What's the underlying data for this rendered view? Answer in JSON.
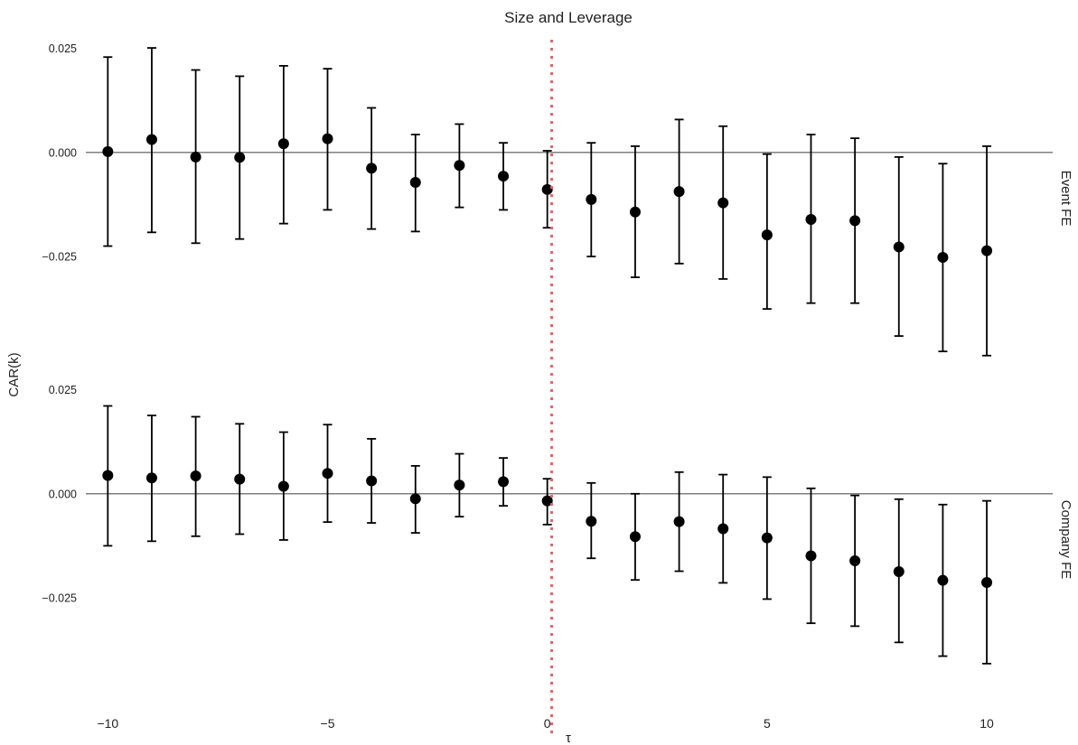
{
  "chart_data": {
    "type": "scatter",
    "title": "Size and Leverage",
    "xlabel": "τ",
    "ylabel": "CAR(k)",
    "xlim": [
      -10.5,
      11.5
    ],
    "x_ticks": [
      "−10",
      "−5",
      "0",
      "5",
      "10"
    ],
    "x_tick_values": [
      -10,
      -5,
      0,
      5,
      10
    ],
    "reference_line": {
      "x": 0.1,
      "style": "dotted",
      "color": "#e06666"
    },
    "grid": false,
    "panels": [
      {
        "name": "Event FE",
        "ylim": [
          -0.0495,
          0.0275
        ],
        "y_ticks": [
          "0.025",
          "0.000",
          "−0.025"
        ],
        "y_tick_values": [
          0.025,
          0.0,
          -0.025
        ],
        "x": [
          -10,
          -9,
          -8,
          -7,
          -6,
          -5,
          -4,
          -3,
          -2,
          -1,
          0,
          1,
          2,
          3,
          4,
          5,
          6,
          7,
          8,
          9,
          10
        ],
        "estimate": [
          0.0002,
          0.0031,
          -0.0011,
          -0.0012,
          0.0021,
          0.0033,
          -0.0038,
          -0.0072,
          -0.0031,
          -0.0057,
          -0.0089,
          -0.0113,
          -0.0143,
          -0.0094,
          -0.0121,
          -0.0198,
          -0.0161,
          -0.0164,
          -0.0227,
          -0.0252,
          -0.0236
        ],
        "ci_low": [
          -0.0225,
          -0.0192,
          -0.0218,
          -0.0208,
          -0.0171,
          -0.0138,
          -0.0184,
          -0.019,
          -0.0132,
          -0.0138,
          -0.0181,
          -0.025,
          -0.03,
          -0.0267,
          -0.0304,
          -0.0376,
          -0.0362,
          -0.0362,
          -0.0441,
          -0.0478,
          -0.0488
        ],
        "ci_high": [
          0.0229,
          0.0251,
          0.0198,
          0.0183,
          0.0208,
          0.0201,
          0.0107,
          0.0043,
          0.0068,
          0.0023,
          0.0004,
          0.0023,
          0.0015,
          0.0079,
          0.0063,
          -0.0004,
          0.0043,
          0.0034,
          -0.0011,
          -0.0027,
          0.0015
        ]
      },
      {
        "name": "Company FE",
        "ylim": [
          -0.0495,
          0.0275
        ],
        "y_ticks": [
          "0.025",
          "0.000",
          "−0.025"
        ],
        "y_tick_values": [
          0.025,
          0.0,
          -0.025
        ],
        "x": [
          -10,
          -9,
          -8,
          -7,
          -6,
          -5,
          -4,
          -3,
          -2,
          -1,
          0,
          1,
          2,
          3,
          4,
          5,
          6,
          7,
          8,
          9,
          10
        ],
        "estimate": [
          0.0044,
          0.0038,
          0.0043,
          0.0035,
          0.0018,
          0.0049,
          0.0031,
          -0.0012,
          0.0021,
          0.0029,
          -0.0017,
          -0.0066,
          -0.0103,
          -0.0067,
          -0.0084,
          -0.0106,
          -0.0149,
          -0.0161,
          -0.0187,
          -0.0208,
          -0.0213
        ],
        "ci_low": [
          -0.0125,
          -0.0114,
          -0.0102,
          -0.0097,
          -0.0111,
          -0.0068,
          -0.007,
          -0.0094,
          -0.0055,
          -0.0029,
          -0.0074,
          -0.0155,
          -0.0207,
          -0.0186,
          -0.0214,
          -0.0253,
          -0.0311,
          -0.0318,
          -0.0357,
          -0.039,
          -0.0408
        ],
        "ci_high": [
          0.0211,
          0.0188,
          0.0185,
          0.0168,
          0.0148,
          0.0166,
          0.0132,
          0.0067,
          0.0096,
          0.0086,
          0.0036,
          0.0026,
          0.0,
          0.0052,
          0.0046,
          0.004,
          0.0013,
          -0.0004,
          -0.0013,
          -0.0026,
          -0.0017
        ]
      }
    ]
  }
}
